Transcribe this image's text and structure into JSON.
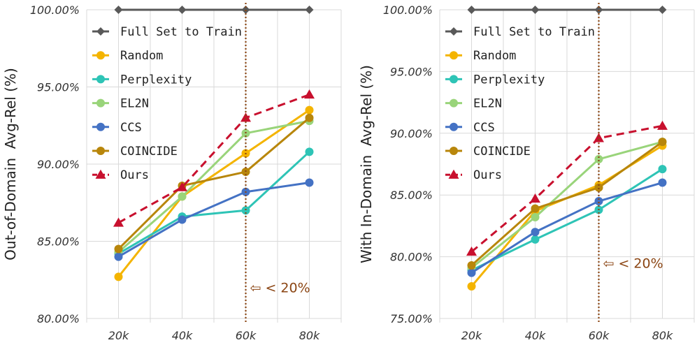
{
  "chart_data": [
    {
      "type": "line",
      "ylabel": "Out-of-Domain  Avg-Rel (%)",
      "categories": [
        "20k",
        "40k",
        "60k",
        "80k"
      ],
      "ylim": [
        80,
        100
      ],
      "yticks": [
        "80.00%",
        "85.00%",
        "90.00%",
        "95.00%",
        "100.00%"
      ],
      "ytick_values": [
        80,
        85,
        90,
        95,
        100
      ],
      "grid": true,
      "legend_position": "top-left",
      "vline_at": "60k",
      "annotation": "⇦ < 20%",
      "annotation_y": 81.7,
      "series": [
        {
          "name": "Full Set to Train",
          "values": [
            100,
            100,
            100,
            100
          ],
          "color": "#595959",
          "marker": "diamond",
          "dash": false
        },
        {
          "name": "Random",
          "values": [
            82.7,
            87.9,
            90.7,
            93.5
          ],
          "color": "#F4B400",
          "marker": "circle",
          "dash": false
        },
        {
          "name": "Perplexity",
          "values": [
            84.2,
            86.6,
            87.0,
            90.8
          ],
          "color": "#2EC4B6",
          "marker": "circle",
          "dash": false
        },
        {
          "name": "EL2N",
          "values": [
            84.3,
            87.9,
            92.0,
            92.8
          ],
          "color": "#99D47A",
          "marker": "circle",
          "dash": false
        },
        {
          "name": "CCS",
          "values": [
            84.0,
            86.4,
            88.2,
            88.8
          ],
          "color": "#4472C4",
          "marker": "circle",
          "dash": false
        },
        {
          "name": "COINCIDE",
          "values": [
            84.5,
            88.6,
            89.5,
            93.0
          ],
          "color": "#B8860B",
          "marker": "circle",
          "dash": false
        },
        {
          "name": "Ours",
          "values": [
            86.2,
            88.5,
            93.0,
            94.5
          ],
          "color": "#C8102E",
          "marker": "triangle",
          "dash": true
        }
      ]
    },
    {
      "type": "line",
      "ylabel": "With In-Domain  Avg-Rel (%)",
      "categories": [
        "20k",
        "40k",
        "60k",
        "80k"
      ],
      "ylim": [
        75,
        100
      ],
      "yticks": [
        "75.00%",
        "80.00%",
        "85.00%",
        "90.00%",
        "95.00%",
        "100.00%"
      ],
      "ytick_values": [
        75,
        80,
        85,
        90,
        95,
        100
      ],
      "grid": true,
      "legend_position": "top-left",
      "vline_at": "60k",
      "annotation": "⇦ < 20%",
      "annotation_y": 79.1,
      "series": [
        {
          "name": "Full Set to Train",
          "values": [
            100,
            100,
            100,
            100
          ],
          "color": "#595959",
          "marker": "diamond",
          "dash": false
        },
        {
          "name": "Random",
          "values": [
            77.6,
            83.7,
            85.8,
            89.0
          ],
          "color": "#F4B400",
          "marker": "circle",
          "dash": false
        },
        {
          "name": "Perplexity",
          "values": [
            78.9,
            81.4,
            83.8,
            87.1
          ],
          "color": "#2EC4B6",
          "marker": "circle",
          "dash": false
        },
        {
          "name": "EL2N",
          "values": [
            79.1,
            83.2,
            87.9,
            89.3
          ],
          "color": "#99D47A",
          "marker": "circle",
          "dash": false
        },
        {
          "name": "CCS",
          "values": [
            78.7,
            82.0,
            84.5,
            86.0
          ],
          "color": "#4472C4",
          "marker": "circle",
          "dash": false
        },
        {
          "name": "COINCIDE",
          "values": [
            79.3,
            83.9,
            85.6,
            89.3
          ],
          "color": "#B8860B",
          "marker": "circle",
          "dash": false
        },
        {
          "name": "Ours",
          "values": [
            80.4,
            84.7,
            89.6,
            90.6
          ],
          "color": "#C8102E",
          "marker": "triangle",
          "dash": true
        }
      ]
    }
  ]
}
